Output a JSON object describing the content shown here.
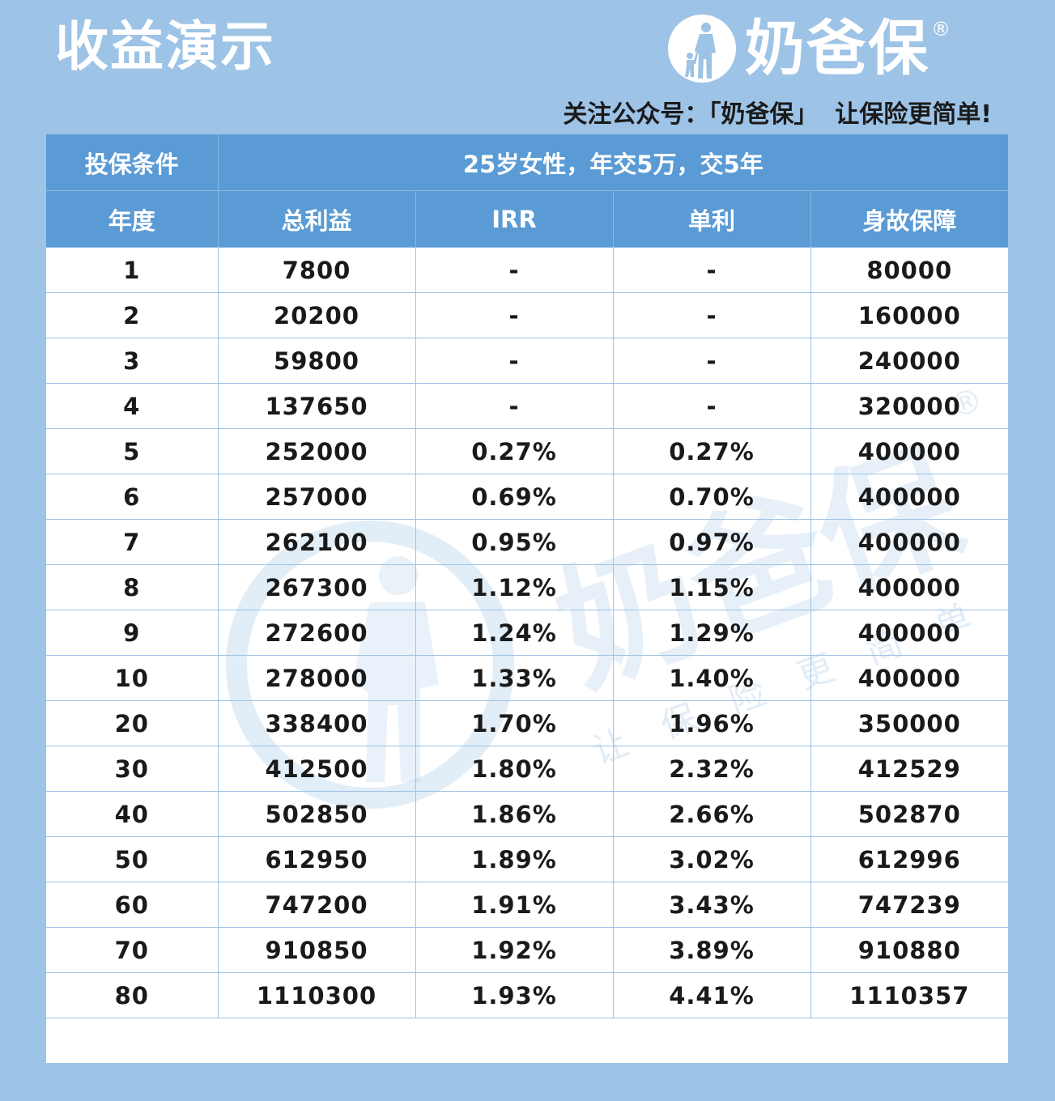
{
  "header": {
    "title": "收益演示",
    "brand_name": "奶爸保",
    "brand_reg": "®",
    "slogan": "关注公众号：「奶爸保」  让保险更简单!",
    "brand_icon": "father-and-child-icon"
  },
  "colors": {
    "background": "#9dc3e6",
    "header_row": "#5b9bd5",
    "grid_line": "#9dc3e6",
    "text": "#1a1a1a"
  },
  "table": {
    "condition_label": "投保条件",
    "condition_value": "25岁女性，年交5万，交5年",
    "columns": [
      "年度",
      "总利益",
      "IRR",
      "单利",
      "身故保障"
    ],
    "rows": [
      [
        "1",
        "7800",
        "-",
        "-",
        "80000"
      ],
      [
        "2",
        "20200",
        "-",
        "-",
        "160000"
      ],
      [
        "3",
        "59800",
        "-",
        "-",
        "240000"
      ],
      [
        "4",
        "137650",
        "-",
        "-",
        "320000"
      ],
      [
        "5",
        "252000",
        "0.27%",
        "0.27%",
        "400000"
      ],
      [
        "6",
        "257000",
        "0.69%",
        "0.70%",
        "400000"
      ],
      [
        "7",
        "262100",
        "0.95%",
        "0.97%",
        "400000"
      ],
      [
        "8",
        "267300",
        "1.12%",
        "1.15%",
        "400000"
      ],
      [
        "9",
        "272600",
        "1.24%",
        "1.29%",
        "400000"
      ],
      [
        "10",
        "278000",
        "1.33%",
        "1.40%",
        "400000"
      ],
      [
        "20",
        "338400",
        "1.70%",
        "1.96%",
        "350000"
      ],
      [
        "30",
        "412500",
        "1.80%",
        "2.32%",
        "412529"
      ],
      [
        "40",
        "502850",
        "1.86%",
        "2.66%",
        "502870"
      ],
      [
        "50",
        "612950",
        "1.89%",
        "3.02%",
        "612996"
      ],
      [
        "60",
        "747200",
        "1.91%",
        "3.43%",
        "747239"
      ],
      [
        "70",
        "910850",
        "1.92%",
        "3.89%",
        "910880"
      ],
      [
        "80",
        "1110300",
        "1.93%",
        "4.41%",
        "1110357"
      ]
    ]
  },
  "watermark": {
    "brand": "奶爸保",
    "slogan": "让保险更简单",
    "reg": "®"
  }
}
